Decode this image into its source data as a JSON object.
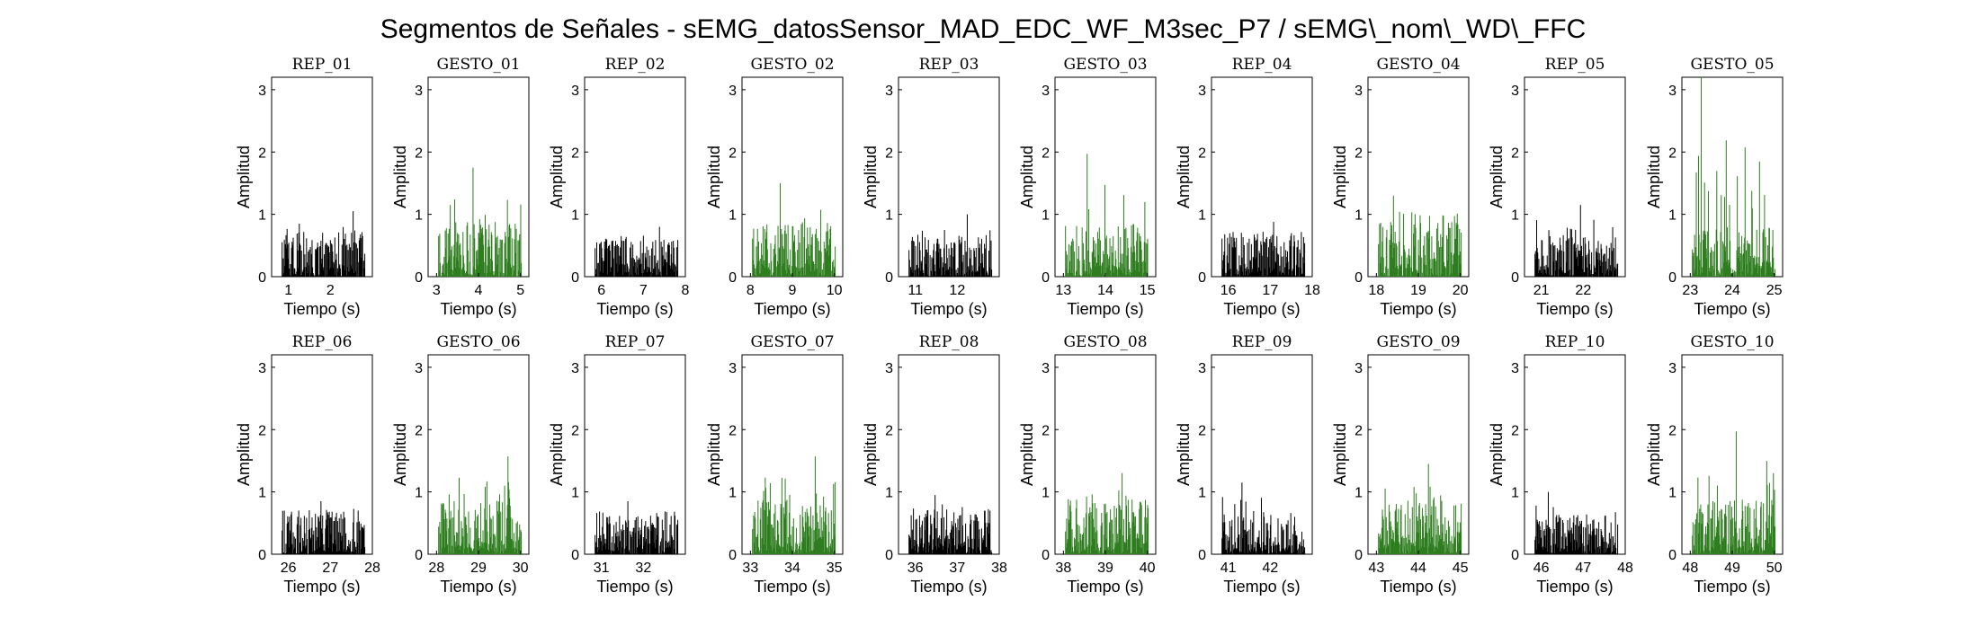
{
  "chart_data": {
    "type": "line",
    "title": "Segmentos de Señales - sEMG_datosSensor_MAD_EDC_WF_M3sec_P7 / sEMG\\_nom\\_WD\\_FFC",
    "xlabel": "Tiempo (s)",
    "ylabel": "Amplitud",
    "ylim": [
      0,
      3.2
    ],
    "yticks": [
      0,
      1,
      2,
      3
    ],
    "colors": {
      "rep": "#000000",
      "gesto": "#2e7d1f"
    },
    "panels": [
      {
        "title": "REP_01",
        "kind": "rep",
        "xlim": [
          0.6,
          3.0
        ],
        "xticks": [
          1,
          2
        ],
        "peak": 1.05,
        "level": 0.45,
        "seed": 11
      },
      {
        "title": "GESTO_01",
        "kind": "gesto",
        "xlim": [
          2.8,
          5.2
        ],
        "xticks": [
          3,
          4,
          5
        ],
        "peak": 1.75,
        "level": 0.55,
        "seed": 12
      },
      {
        "title": "REP_02",
        "kind": "rep",
        "xlim": [
          5.6,
          8.0
        ],
        "xticks": [
          6,
          7,
          8
        ],
        "peak": 0.8,
        "level": 0.4,
        "seed": 13
      },
      {
        "title": "GESTO_02",
        "kind": "gesto",
        "xlim": [
          7.8,
          10.2
        ],
        "xticks": [
          8,
          9,
          10
        ],
        "peak": 1.5,
        "level": 0.55,
        "seed": 14
      },
      {
        "title": "REP_03",
        "kind": "rep",
        "xlim": [
          10.6,
          13.0
        ],
        "xticks": [
          11,
          12
        ],
        "peak": 1.0,
        "level": 0.4,
        "seed": 15
      },
      {
        "title": "GESTO_03",
        "kind": "gesto",
        "xlim": [
          12.8,
          15.2
        ],
        "xticks": [
          13,
          14,
          15
        ],
        "peak": 1.97,
        "level": 0.55,
        "seed": 16
      },
      {
        "title": "REP_04",
        "kind": "rep",
        "xlim": [
          15.6,
          18.0
        ],
        "xticks": [
          16,
          17,
          18
        ],
        "peak": 0.88,
        "level": 0.45,
        "seed": 17
      },
      {
        "title": "GESTO_04",
        "kind": "gesto",
        "xlim": [
          17.8,
          20.2
        ],
        "xticks": [
          18,
          19,
          20
        ],
        "peak": 1.3,
        "level": 0.55,
        "seed": 18
      },
      {
        "title": "REP_05",
        "kind": "rep",
        "xlim": [
          20.6,
          23.0
        ],
        "xticks": [
          21,
          22
        ],
        "peak": 1.15,
        "level": 0.4,
        "seed": 19
      },
      {
        "title": "GESTO_05",
        "kind": "gesto",
        "xlim": [
          22.8,
          25.2
        ],
        "xticks": [
          23,
          24,
          25
        ],
        "peak": 3.2,
        "level": 0.5,
        "seed": 20
      },
      {
        "title": "REP_06",
        "kind": "rep",
        "xlim": [
          25.6,
          28.0
        ],
        "xticks": [
          26,
          27,
          28
        ],
        "peak": 0.85,
        "level": 0.45,
        "seed": 21
      },
      {
        "title": "GESTO_06",
        "kind": "gesto",
        "xlim": [
          27.8,
          30.2
        ],
        "xticks": [
          28,
          29,
          30
        ],
        "peak": 1.57,
        "level": 0.55,
        "seed": 22
      },
      {
        "title": "REP_07",
        "kind": "rep",
        "xlim": [
          30.6,
          33.0
        ],
        "xticks": [
          31,
          32
        ],
        "peak": 0.85,
        "level": 0.4,
        "seed": 23
      },
      {
        "title": "GESTO_07",
        "kind": "gesto",
        "xlim": [
          32.8,
          35.2
        ],
        "xticks": [
          33,
          34,
          35
        ],
        "peak": 1.57,
        "level": 0.55,
        "seed": 24
      },
      {
        "title": "REP_08",
        "kind": "rep",
        "xlim": [
          35.6,
          38.0
        ],
        "xticks": [
          36,
          37,
          38
        ],
        "peak": 0.95,
        "level": 0.45,
        "seed": 25
      },
      {
        "title": "GESTO_08",
        "kind": "gesto",
        "xlim": [
          37.8,
          40.2
        ],
        "xticks": [
          38,
          39,
          40
        ],
        "peak": 1.3,
        "level": 0.55,
        "seed": 26
      },
      {
        "title": "REP_09",
        "kind": "rep",
        "xlim": [
          40.6,
          43.0
        ],
        "xticks": [
          41,
          42
        ],
        "peak": 1.15,
        "level": 0.4,
        "seed": 27
      },
      {
        "title": "GESTO_09",
        "kind": "gesto",
        "xlim": [
          42.8,
          45.2
        ],
        "xticks": [
          43,
          44,
          45
        ],
        "peak": 1.45,
        "level": 0.55,
        "seed": 28
      },
      {
        "title": "REP_10",
        "kind": "rep",
        "xlim": [
          45.6,
          48.0
        ],
        "xticks": [
          46,
          47,
          48
        ],
        "peak": 1.0,
        "level": 0.4,
        "seed": 29
      },
      {
        "title": "GESTO_10",
        "kind": "gesto",
        "xlim": [
          47.8,
          50.2
        ],
        "xticks": [
          48,
          49,
          50
        ],
        "peak": 1.97,
        "level": 0.55,
        "seed": 30
      }
    ]
  }
}
